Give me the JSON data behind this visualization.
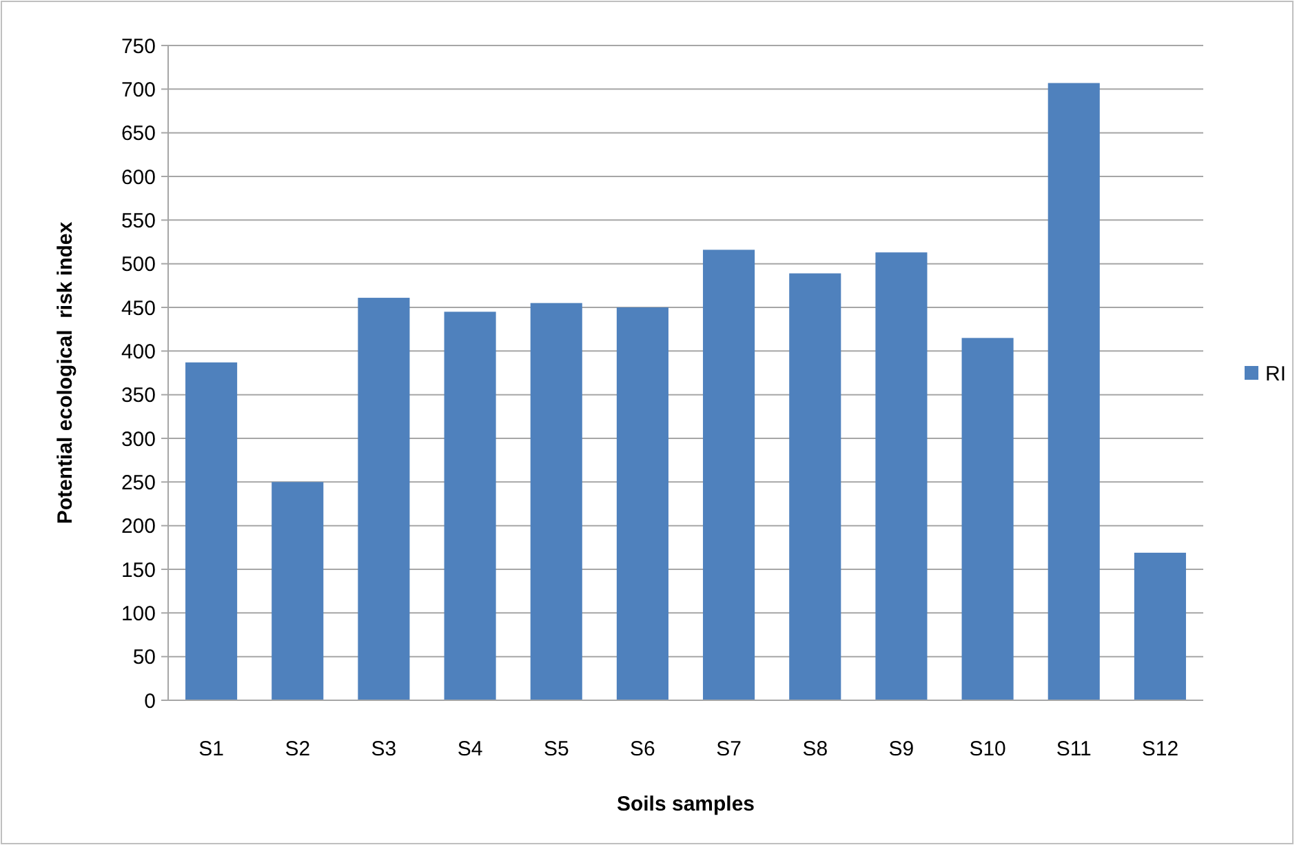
{
  "chart_data": {
    "type": "bar",
    "xlabel": "Soils samples",
    "ylabel": "Potential ecological  risk index",
    "categories": [
      "S1",
      "S2",
      "S3",
      "S4",
      "S5",
      "S6",
      "S7",
      "S8",
      "S9",
      "S10",
      "S11",
      "S12"
    ],
    "series": [
      {
        "name": "RI",
        "color": "#4f81bd",
        "values": [
          387,
          250,
          461,
          445,
          455,
          450,
          516,
          489,
          513,
          415,
          707,
          169
        ]
      }
    ],
    "ylim": [
      0,
      750
    ],
    "yticks": [
      0,
      50,
      100,
      150,
      200,
      250,
      300,
      350,
      400,
      450,
      500,
      550,
      600,
      650,
      700,
      750
    ],
    "grid": "y",
    "legend": "right"
  }
}
